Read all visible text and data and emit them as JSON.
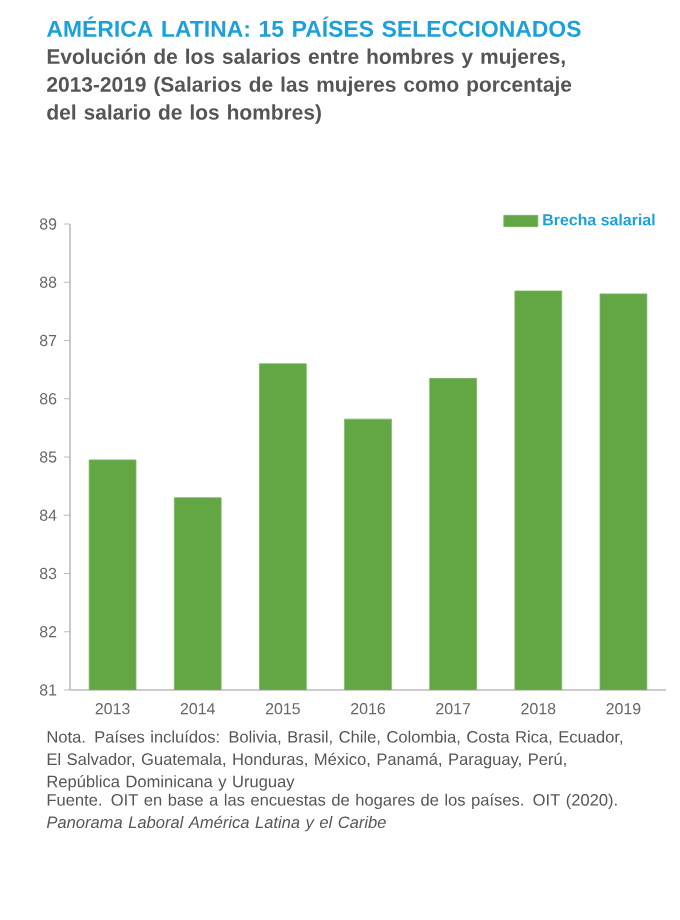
{
  "chart_data": {
    "type": "bar",
    "title": "AMÉRICA LATINA: 15 PAÍSES SELECCIONADOS",
    "subtitle": "Evolución de los salarios entre hombres y mujeres, 2013-2019 (Salarios de las mujeres como porcentaje del salario de los hombres)",
    "categories": [
      "2013",
      "2014",
      "2015",
      "2016",
      "2017",
      "2018",
      "2019"
    ],
    "series": [
      {
        "name": "Brecha salarial",
        "color": "#62a744",
        "values": [
          84.95,
          84.3,
          86.6,
          85.65,
          86.35,
          87.85,
          87.8
        ]
      }
    ],
    "ylim": [
      81,
      89
    ],
    "yticks": [
      81,
      82,
      83,
      84,
      85,
      86,
      87,
      88,
      89
    ],
    "legend": "top right",
    "annotations": [
      "Nota. Países incluídos: Bolivia, Brasil, Chile, Colombia, Costa Rica, Ecuador, El Salvador, Guatemala, Honduras, México, Panamá, Paraguay, Perú, República Dominicana y Uruguay",
      "Fuente. OIT en base a las encuestas de hogares de los países. OIT (2020). *Panorama Laboral América Latina y el Caribe*"
    ]
  }
}
